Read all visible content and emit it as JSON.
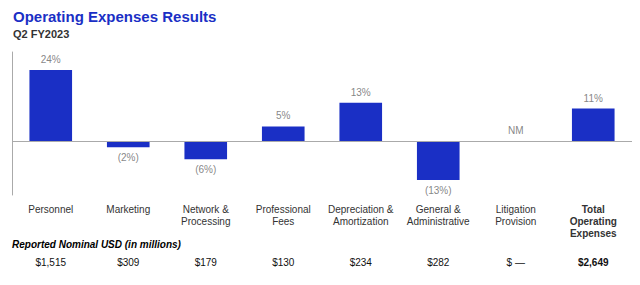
{
  "chart_data": {
    "type": "bar",
    "title": "Operating Expenses Results",
    "subtitle": "Q2 FY2023",
    "categories": [
      "Personnel",
      "Marketing",
      "Network &\nProcessing",
      "Professional\nFees",
      "Depreciation &\nAmortization",
      "General &\nAdministrative",
      "Litigation\nProvision",
      "Total\nOperating\nExpenses"
    ],
    "values": [
      24,
      -2,
      -6,
      5,
      13,
      -13,
      0,
      11
    ],
    "value_labels": [
      "24%",
      "(2%)",
      "(6%)",
      "5%",
      "13%",
      "(13%)",
      "NM",
      "11%"
    ],
    "color": "#1a2fc5",
    "ylim": [
      -18,
      30
    ],
    "grid": false,
    "data_labels": true,
    "tick_labels": "x",
    "reported_label": "Reported Nominal USD (in millions)",
    "reported_values": [
      "$1,515",
      "$309",
      "$179",
      "$130",
      "$234",
      "$282",
      "$ —",
      "$2,649"
    ]
  }
}
